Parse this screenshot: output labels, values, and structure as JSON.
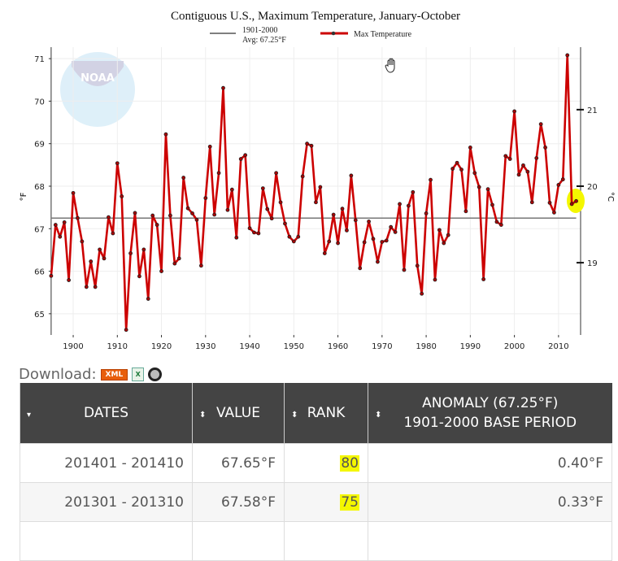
{
  "chart_data": {
    "type": "line",
    "title": "Contiguous U.S., Maximum Temperature, January-October",
    "ylabel": "°F",
    "ylabel_right": "°C",
    "xlim": [
      1895,
      2015
    ],
    "ylim": [
      64.5,
      71.27
    ],
    "x_ticks": [
      1900,
      1910,
      1920,
      1930,
      1940,
      1950,
      1960,
      1970,
      1980,
      1990,
      2000,
      2010
    ],
    "y_ticks": [
      65,
      66,
      67,
      68,
      69,
      70,
      71
    ],
    "y_ticks_right": [
      19,
      20,
      21
    ],
    "grid": true,
    "legend": {
      "baseline_label_1": "1901-2000",
      "baseline_label_2": "Avg: 67.25°F",
      "series_label": "Max Temperature",
      "placement": "top"
    },
    "baseline": 67.25,
    "colors": {
      "series": "#cc0000",
      "baseline": "#777777",
      "highlight": "#f4f700"
    },
    "series": [
      {
        "name": "Max Temperature",
        "x_start": 1895,
        "values": [
          65.89,
          67.09,
          66.81,
          67.15,
          65.79,
          67.84,
          67.25,
          66.7,
          65.63,
          66.23,
          65.63,
          66.51,
          66.3,
          67.27,
          66.89,
          68.54,
          67.76,
          64.62,
          66.42,
          67.37,
          65.88,
          66.51,
          65.35,
          67.31,
          67.09,
          66.0,
          69.22,
          67.31,
          66.18,
          66.3,
          68.2,
          67.48,
          67.36,
          67.21,
          66.13,
          67.72,
          68.93,
          67.33,
          68.31,
          70.31,
          67.44,
          67.92,
          66.79,
          68.64,
          68.73,
          67.01,
          66.91,
          66.89,
          67.95,
          67.46,
          67.24,
          68.31,
          67.62,
          67.12,
          66.81,
          66.7,
          66.81,
          68.23,
          69.0,
          68.95,
          67.62,
          67.98,
          66.42,
          66.7,
          67.33,
          66.66,
          67.47,
          66.96,
          68.25,
          67.2,
          66.07,
          66.68,
          67.17,
          66.76,
          66.22,
          66.69,
          66.72,
          67.04,
          66.92,
          67.58,
          66.03,
          67.54,
          67.86,
          66.13,
          65.47,
          67.36,
          68.15,
          65.8,
          66.97,
          66.66,
          66.85,
          68.41,
          68.55,
          68.39,
          67.41,
          68.91,
          68.31,
          67.98,
          65.81,
          67.93,
          67.56,
          67.16,
          67.09,
          68.71,
          68.64,
          69.76,
          68.27,
          68.49,
          68.34,
          67.62,
          68.66,
          69.46,
          68.91,
          67.61,
          67.38,
          68.03,
          68.16,
          71.08,
          67.58,
          67.65
        ]
      }
    ]
  },
  "download": {
    "label": "Download:",
    "xml": "XML",
    "excel": "X"
  },
  "table": {
    "headers": [
      "DATES",
      "VALUE",
      "RANK",
      "ANOMALY (67.25°F)",
      "1901-2000 BASE PERIOD"
    ],
    "rows": [
      {
        "dates": "201401 - 201410",
        "value": "67.65°F",
        "rank": "80",
        "anomaly": "0.40°F"
      },
      {
        "dates": "201301 - 201310",
        "value": "67.58°F",
        "rank": "75",
        "anomaly": "0.33°F"
      }
    ]
  }
}
